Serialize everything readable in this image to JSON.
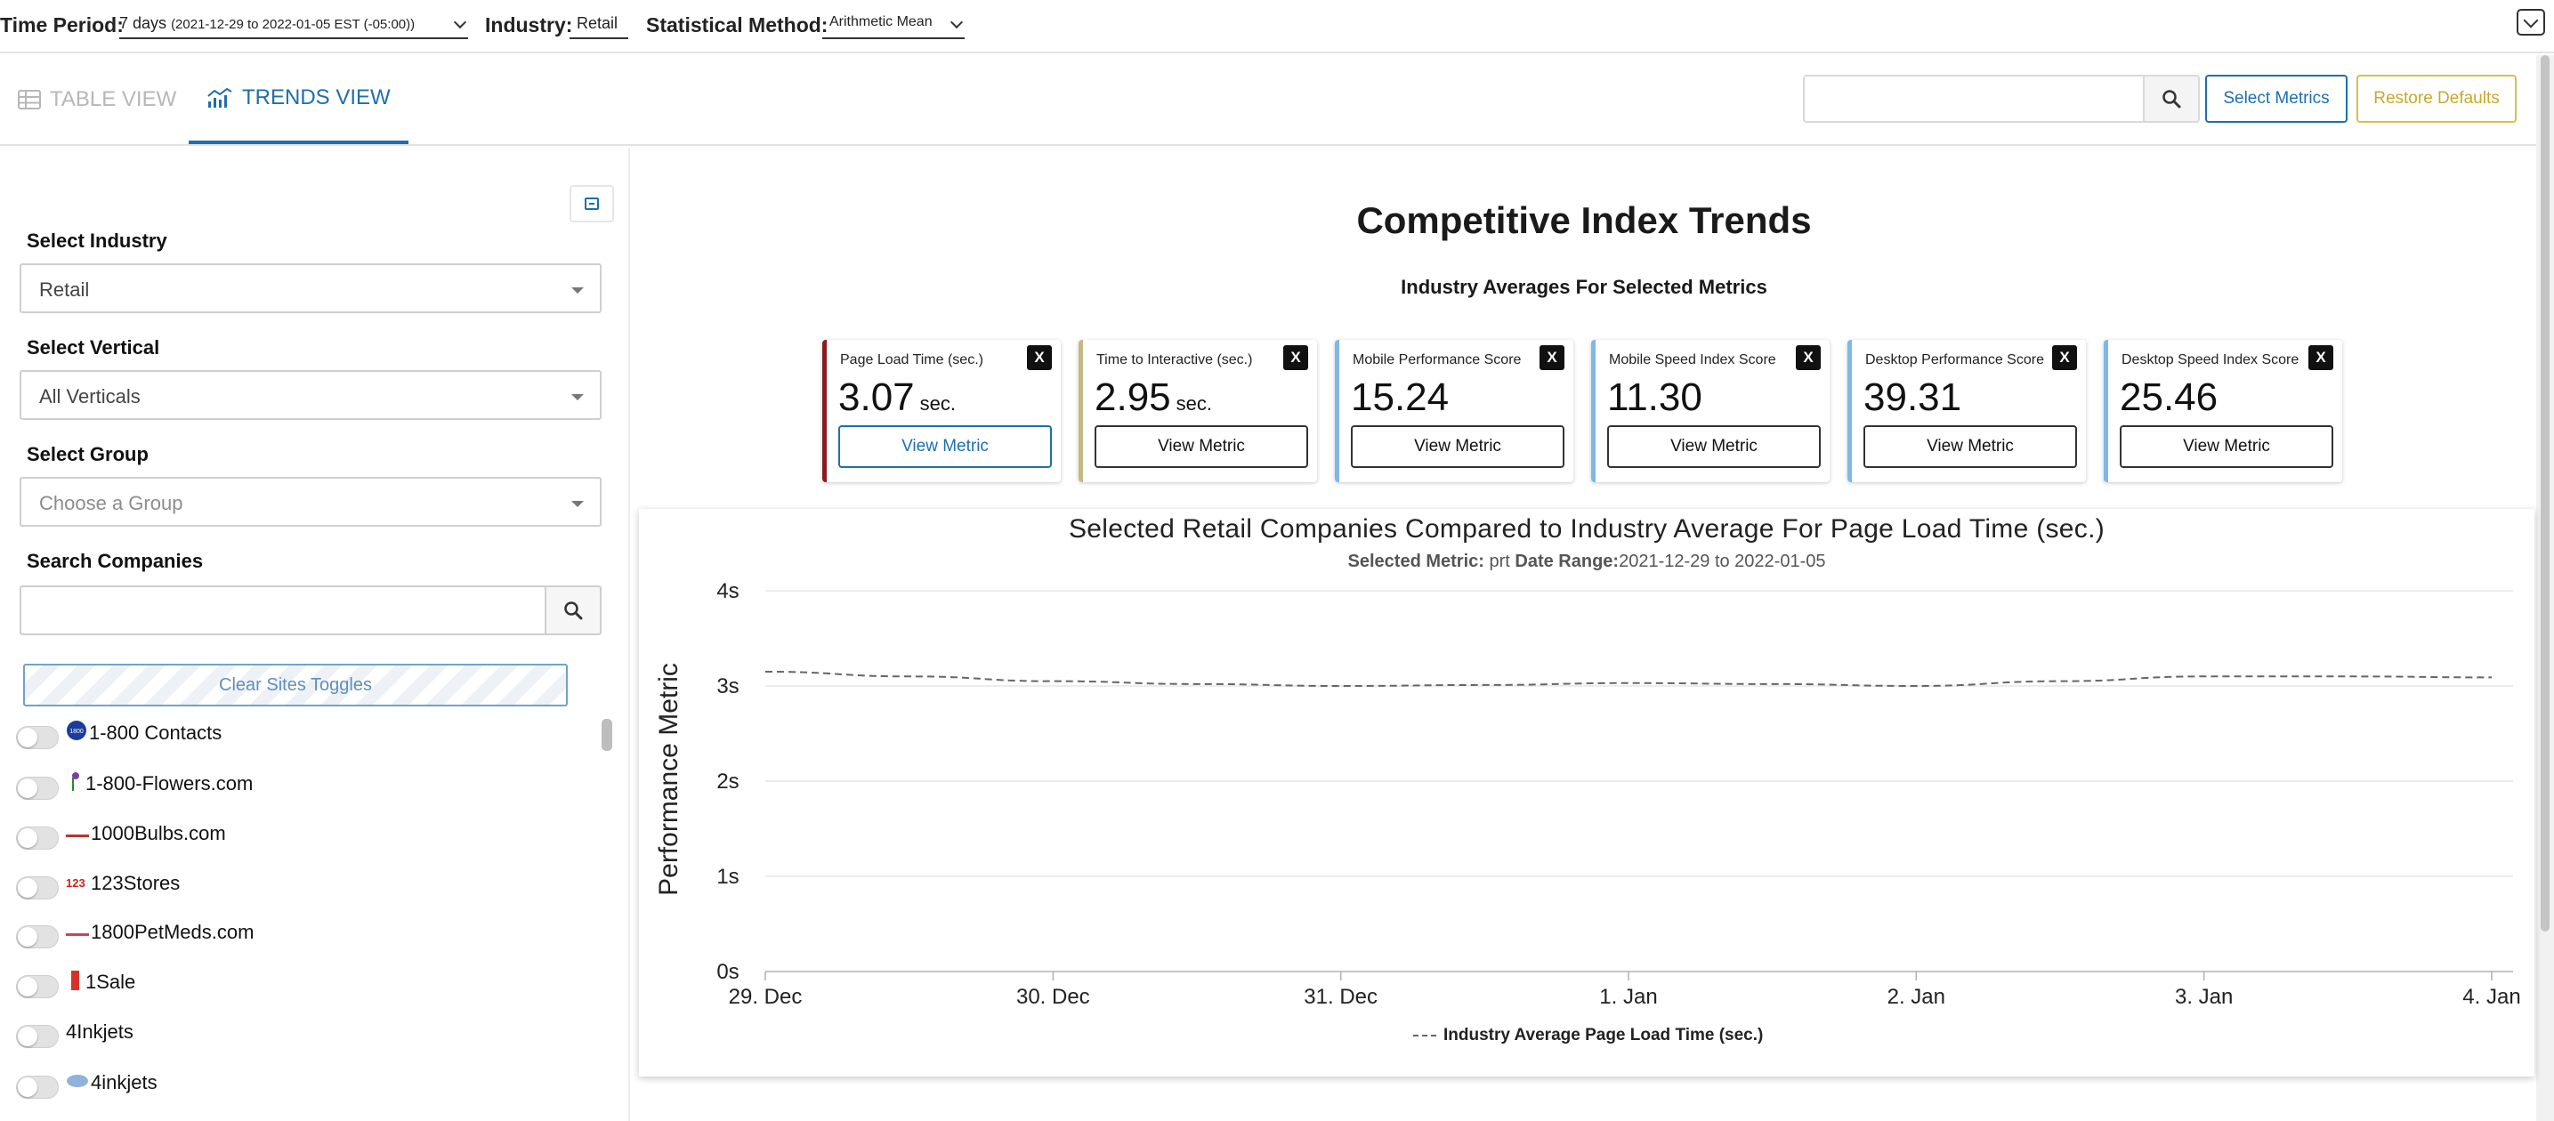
{
  "filters": {
    "time_period_label": "Time Period:",
    "time_period_value": "7 days",
    "time_period_range": "(2021-12-29 to 2022-01-05 EST (-05:00))",
    "industry_label": "Industry:",
    "industry_value": "Retail",
    "method_label": "Statistical Method:",
    "method_value": "Arithmetic Mean"
  },
  "tabs": [
    {
      "label": "TABLE VIEW",
      "active": false
    },
    {
      "label": "TRENDS VIEW",
      "active": true
    }
  ],
  "toolbar": {
    "search_placeholder": "",
    "select_metrics_label": "Select Metrics",
    "restore_defaults_label": "Restore Defaults"
  },
  "sidebar": {
    "industry_label": "Select Industry",
    "industry_value": "Retail",
    "vertical_label": "Select Vertical",
    "vertical_value": "All Verticals",
    "group_label": "Select Group",
    "group_placeholder": "Choose a Group",
    "search_label": "Search Companies",
    "search_placeholder": "",
    "clear_toggles_label": "Clear Sites Toggles",
    "companies": [
      {
        "name": "1-800 Contacts",
        "logo": "1-800-contacts-logo",
        "enabled": false
      },
      {
        "name": "1-800-Flowers.com",
        "logo": "flower-logo",
        "enabled": false
      },
      {
        "name": "1000Bulbs.com",
        "logo": "1000bulbs-logo",
        "enabled": false
      },
      {
        "name": "123Stores",
        "logo": "123stores-logo",
        "enabled": false
      },
      {
        "name": "1800PetMeds.com",
        "logo": "petmeds-logo",
        "enabled": false
      },
      {
        "name": "1Sale",
        "logo": "1sale-logo",
        "enabled": false
      },
      {
        "name": "4Inkjets",
        "logo": "",
        "enabled": false
      },
      {
        "name": "4inkjets",
        "logo": "4inkjets-logo",
        "enabled": false
      }
    ]
  },
  "main": {
    "title": "Competitive Index Trends",
    "subtitle": "Industry Averages For Selected Metrics",
    "view_metric_label": "View Metric",
    "close_label": "X",
    "metrics": [
      {
        "label": "Page Load Time (sec.)",
        "value": "3.07",
        "unit": "sec.",
        "color": "#8b1a1a",
        "selected": true
      },
      {
        "label": "Time to Interactive (sec.)",
        "value": "2.95",
        "unit": "sec.",
        "color": "#c9b785",
        "selected": false
      },
      {
        "label": "Mobile Performance Score",
        "value": "15.24",
        "unit": "",
        "color": "#7cb9e8",
        "selected": false
      },
      {
        "label": "Mobile Speed Index Score",
        "value": "11.30",
        "unit": "",
        "color": "#7cb9e8",
        "selected": false
      },
      {
        "label": "Desktop Performance Score",
        "value": "39.31",
        "unit": "",
        "color": "#7cb9e8",
        "selected": false
      },
      {
        "label": "Desktop Speed Index Score",
        "value": "25.46",
        "unit": "",
        "color": "#7cb9e8",
        "selected": false
      }
    ]
  },
  "chart_data": {
    "type": "line",
    "title": "Selected Retail Companies Compared to Industry Average For Page Load Time (sec.)",
    "subtitle_metric_label": "Selected Metric:",
    "subtitle_metric_value": "prt",
    "subtitle_range_label": "Date Range:",
    "subtitle_range_value": "2021-12-29 to 2022-01-05",
    "ylabel": "Performance Metric",
    "xlabel": "",
    "ylim": [
      0,
      4
    ],
    "yticks": [
      "0s",
      "1s",
      "2s",
      "3s",
      "4s"
    ],
    "categories": [
      "29. Dec",
      "30. Dec",
      "31. Dec",
      "1. Jan",
      "2. Jan",
      "3. Jan",
      "4. Jan"
    ],
    "x": [
      0,
      0.5,
      1,
      1.5,
      2,
      2.5,
      3,
      3.5,
      4,
      4.5,
      5,
      5.5,
      6
    ],
    "series": [
      {
        "name": "Industry Average Page Load Time (sec.)",
        "style": "dashed",
        "color": "#666666",
        "values": [
          3.15,
          3.1,
          3.05,
          3.02,
          3.0,
          3.01,
          3.03,
          3.02,
          3.0,
          3.05,
          3.1,
          3.1,
          3.09
        ]
      }
    ],
    "grid": true,
    "legend_position": "bottom"
  }
}
